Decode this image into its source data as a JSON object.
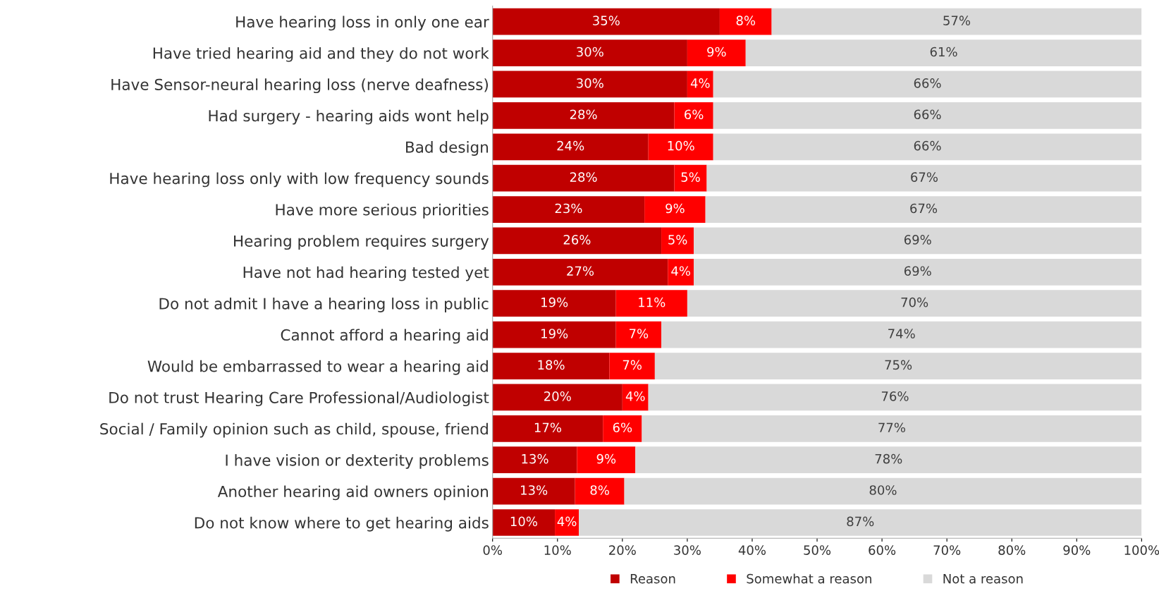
{
  "chart_data": {
    "type": "bar",
    "orientation": "horizontal",
    "stacked": true,
    "categories": [
      "Have hearing loss in only one ear",
      "Have tried hearing aid and they do not work",
      "Have Sensor-neural hearing loss (nerve deafness)",
      "Had surgery - hearing aids wont help",
      "Bad design",
      "Have hearing loss only with low frequency sounds",
      "Have more serious priorities",
      "Hearing problem requires surgery",
      "Have not had hearing tested yet",
      "Do not admit I have a hearing loss in public",
      "Cannot afford a hearing aid",
      "Would be embarrassed to wear a hearing aid",
      "Do not trust Hearing Care Professional/Audiologist",
      "Social / Family opinion such as child, spouse, friend",
      "I have vision or dexterity problems",
      "Another hearing aid owners opinion",
      "Do not know where to get hearing aids"
    ],
    "series": [
      {
        "name": "Reason",
        "color": "#c00000",
        "values": [
          35,
          30,
          30,
          28,
          24,
          28,
          23.4,
          26,
          27,
          19,
          19,
          18,
          20,
          17,
          13,
          12.7,
          9.6
        ],
        "value_labels": [
          "35%",
          "30%",
          "30%",
          "28%",
          "24%",
          "28%",
          "23%",
          "26%",
          "27%",
          "19%",
          "19%",
          "18%",
          "20%",
          "17%",
          "13%",
          "13%",
          "10%"
        ]
      },
      {
        "name": "Somewhat a reason",
        "color": "#ff0000",
        "values": [
          8,
          9,
          4,
          6,
          10,
          5,
          9.4,
          5,
          4,
          11,
          7,
          7,
          4,
          6,
          9,
          7.6,
          3.7
        ],
        "value_labels": [
          "8%",
          "9%",
          "4%",
          "6%",
          "10%",
          "5%",
          "9%",
          "5%",
          "4%",
          "11%",
          "7%",
          "7%",
          "4%",
          "6%",
          "9%",
          "8%",
          "4%"
        ]
      },
      {
        "name": "Not a reason",
        "color": "#d9d9d9",
        "values": [
          57,
          61,
          66,
          66,
          66,
          67,
          67.2,
          69,
          69,
          70,
          74,
          75,
          76,
          77,
          78,
          79.7,
          86.7
        ],
        "value_labels": [
          "57%",
          "61%",
          "66%",
          "66%",
          "66%",
          "67%",
          "67%",
          "69%",
          "69%",
          "70%",
          "74%",
          "75%",
          "76%",
          "77%",
          "78%",
          "80%",
          "87%"
        ]
      }
    ],
    "xlim": [
      0,
      100
    ],
    "xticks": [
      {
        "value": 0,
        "label": "0%"
      },
      {
        "value": 10,
        "label": "10%"
      },
      {
        "value": 20,
        "label": "20%"
      },
      {
        "value": 30,
        "label": "30%"
      },
      {
        "value": 40,
        "label": "40%"
      },
      {
        "value": 50,
        "label": "50%"
      },
      {
        "value": 60,
        "label": "60%"
      },
      {
        "value": 70,
        "label": "70%"
      },
      {
        "value": 80,
        "label": "80%"
      },
      {
        "value": 90,
        "label": "90%"
      },
      {
        "value": 100,
        "label": "100%"
      }
    ],
    "grid": false,
    "legend": "bottom"
  }
}
